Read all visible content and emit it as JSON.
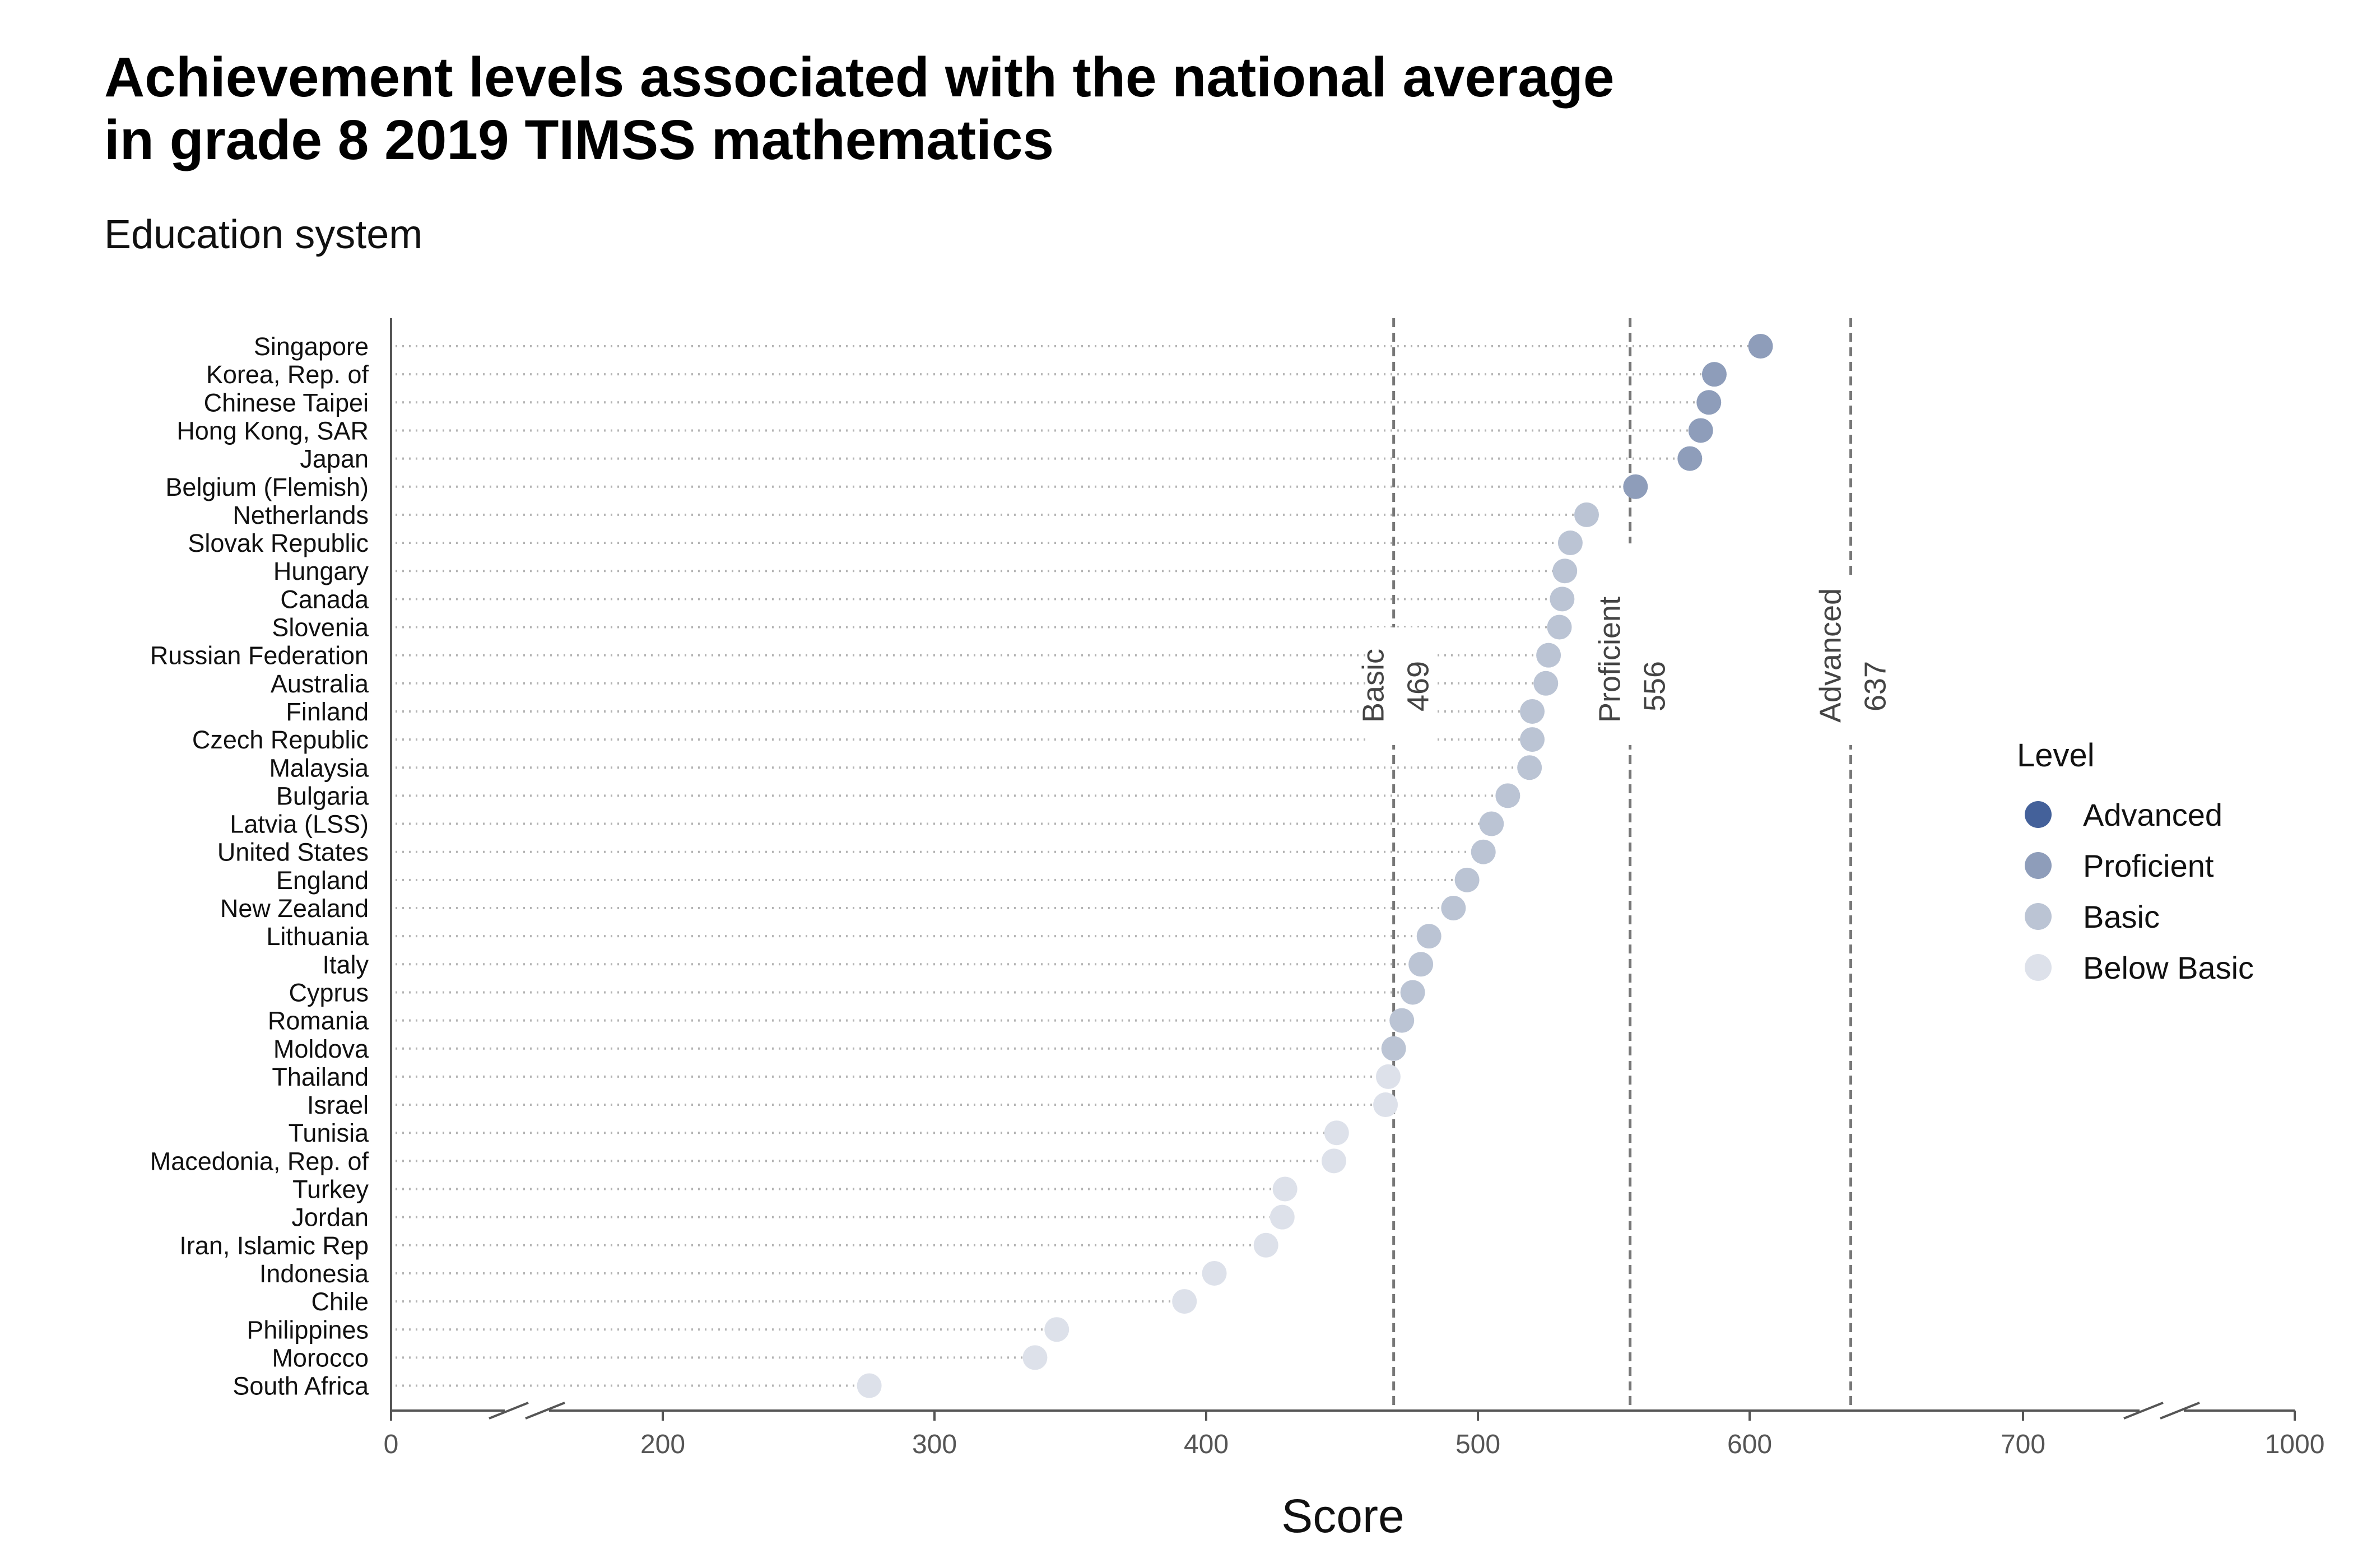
{
  "title_line1": "Achievement levels associated with the national average",
  "title_line2": "in grade 8 2019 TIMSS mathematics",
  "subtitle": "Education system",
  "chart_data": {
    "type": "scatter",
    "xlabel": "Score",
    "ylabel": "",
    "xlim": [
      0,
      1000
    ],
    "x_ticks": [
      "0",
      "200",
      "300",
      "400",
      "500",
      "600",
      "700",
      "1000"
    ],
    "axis_breaks": [
      "0-200",
      "700-1000"
    ],
    "grid": "dotted horizontal guide lines",
    "legend": {
      "title": "Level",
      "placement": "right",
      "entries": [
        "Advanced",
        "Proficient",
        "Basic",
        "Below Basic"
      ]
    },
    "level_colors": {
      "Advanced": "#44619a",
      "Proficient": "#8e9dba",
      "Basic": "#bbc4d4",
      "Below Basic": "#dde1ea"
    },
    "benchmarks": [
      {
        "name": "Basic",
        "value": 469,
        "label": "469"
      },
      {
        "name": "Proficient",
        "value": 556,
        "label": "556"
      },
      {
        "name": "Advanced",
        "value": 637,
        "label": "637"
      }
    ],
    "points": [
      {
        "country": "Singapore",
        "score": 604,
        "level": "Proficient"
      },
      {
        "country": "Korea, Rep. of",
        "score": 587,
        "level": "Proficient"
      },
      {
        "country": "Chinese Taipei",
        "score": 585,
        "level": "Proficient"
      },
      {
        "country": "Hong Kong, SAR",
        "score": 582,
        "level": "Proficient"
      },
      {
        "country": "Japan",
        "score": 578,
        "level": "Proficient"
      },
      {
        "country": "Belgium (Flemish)",
        "score": 558,
        "level": "Proficient"
      },
      {
        "country": "Netherlands",
        "score": 540,
        "level": "Basic"
      },
      {
        "country": "Slovak Republic",
        "score": 534,
        "level": "Basic"
      },
      {
        "country": "Hungary",
        "score": 532,
        "level": "Basic"
      },
      {
        "country": "Canada",
        "score": 531,
        "level": "Basic"
      },
      {
        "country": "Slovenia",
        "score": 530,
        "level": "Basic"
      },
      {
        "country": "Russian Federation",
        "score": 526,
        "level": "Basic"
      },
      {
        "country": "Australia",
        "score": 525,
        "level": "Basic"
      },
      {
        "country": "Finland",
        "score": 520,
        "level": "Basic"
      },
      {
        "country": "Czech Republic",
        "score": 520,
        "level": "Basic"
      },
      {
        "country": "Malaysia",
        "score": 519,
        "level": "Basic"
      },
      {
        "country": "Bulgaria",
        "score": 511,
        "level": "Basic"
      },
      {
        "country": "Latvia (LSS)",
        "score": 505,
        "level": "Basic"
      },
      {
        "country": "United States",
        "score": 502,
        "level": "Basic"
      },
      {
        "country": "England",
        "score": 496,
        "level": "Basic"
      },
      {
        "country": "New Zealand",
        "score": 491,
        "level": "Basic"
      },
      {
        "country": "Lithuania",
        "score": 482,
        "level": "Basic"
      },
      {
        "country": "Italy",
        "score": 479,
        "level": "Basic"
      },
      {
        "country": "Cyprus",
        "score": 476,
        "level": "Basic"
      },
      {
        "country": "Romania",
        "score": 472,
        "level": "Basic"
      },
      {
        "country": "Moldova",
        "score": 469,
        "level": "Basic"
      },
      {
        "country": "Thailand",
        "score": 467,
        "level": "Below Basic"
      },
      {
        "country": "Israel",
        "score": 466,
        "level": "Below Basic"
      },
      {
        "country": "Tunisia",
        "score": 448,
        "level": "Below Basic"
      },
      {
        "country": "Macedonia, Rep. of",
        "score": 447,
        "level": "Below Basic"
      },
      {
        "country": "Turkey",
        "score": 429,
        "level": "Below Basic"
      },
      {
        "country": "Jordan",
        "score": 428,
        "level": "Below Basic"
      },
      {
        "country": "Iran, Islamic Rep",
        "score": 422,
        "level": "Below Basic"
      },
      {
        "country": "Indonesia",
        "score": 403,
        "level": "Below Basic"
      },
      {
        "country": "Chile",
        "score": 392,
        "level": "Below Basic"
      },
      {
        "country": "Philippines",
        "score": 345,
        "level": "Below Basic"
      },
      {
        "country": "Morocco",
        "score": 337,
        "level": "Below Basic"
      },
      {
        "country": "South Africa",
        "score": 276,
        "level": "Below Basic"
      }
    ]
  }
}
